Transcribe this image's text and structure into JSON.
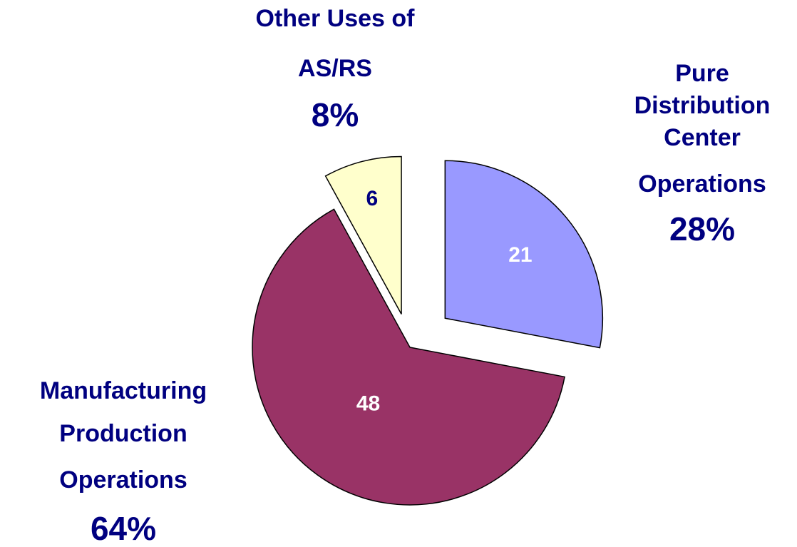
{
  "chart_data": {
    "type": "pie",
    "categories": [
      [
        "Pure",
        "Distribution",
        "Center",
        "Operations"
      ],
      [
        "Manufacturing",
        "Production",
        "Operations"
      ],
      [
        "Other Uses of",
        "AS/RS"
      ]
    ],
    "values": [
      21,
      48,
      6
    ],
    "percent_labels": [
      "28%",
      "64%",
      "8%"
    ],
    "colors": [
      "#9999ff",
      "#993366",
      "#ffffcc"
    ],
    "value_label_colors": [
      "#ffffff",
      "#ffffff",
      "#000080"
    ],
    "exploded": [
      true,
      false,
      true
    ]
  }
}
